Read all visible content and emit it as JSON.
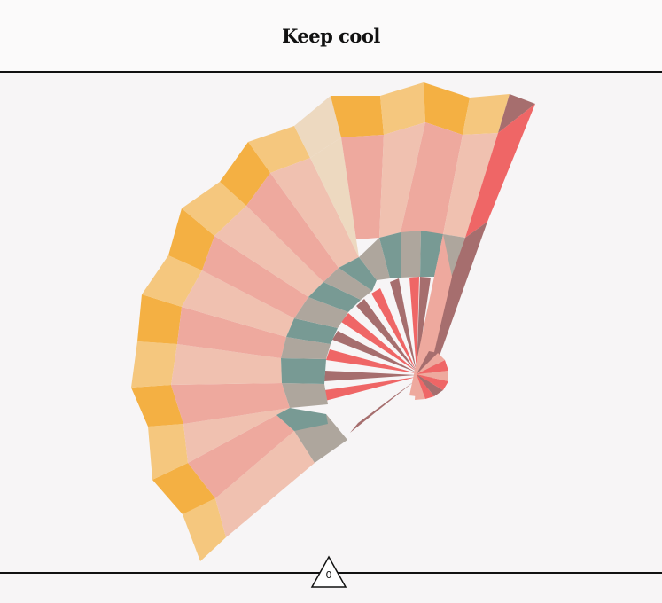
{
  "header": {
    "title": "Keep cool"
  },
  "indicator": {
    "count": "0",
    "shape": "triangle-icon"
  },
  "fan": {
    "colors": {
      "orange": "#f4b043",
      "light_orange": "#f5c77e",
      "pale": "#edd9c0",
      "pink": "#eea99e",
      "light_pink": "#f0c1b0",
      "teal": "#789a94",
      "gray": "#aea69d",
      "red": "#ef6666",
      "brown": "#a66e6e",
      "background": "#f7f5f6",
      "line": "#111111"
    }
  }
}
